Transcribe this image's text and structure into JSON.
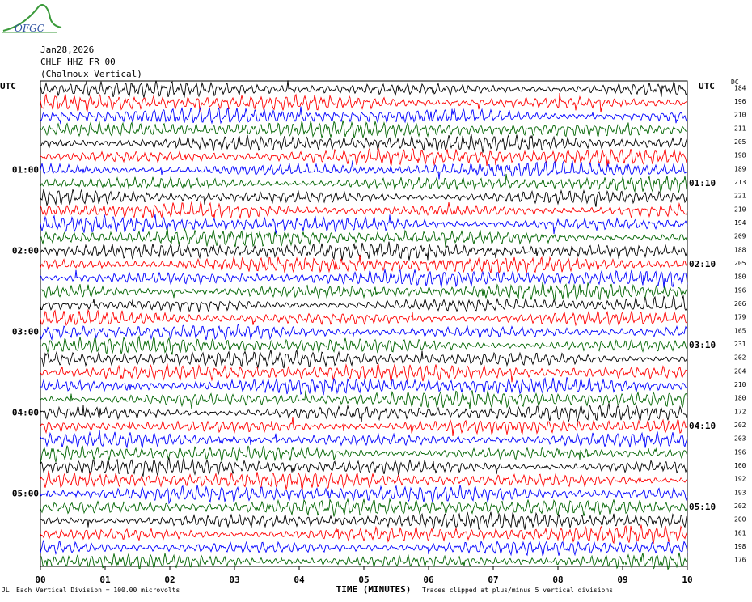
{
  "header": {
    "logo_text": "OFGC",
    "date": "Jan28,2026",
    "station": "CHLF HHZ FR 00",
    "location": "(Chalmoux Vertical)"
  },
  "utc_left": "UTC",
  "utc_right": "UTC",
  "dc_label": "DC",
  "footer": {
    "scale_note": "Each Vertical Division =  100.00 microvolts",
    "clip_note": "Traces clipped at plus/minus 5 vertical divisions",
    "corner_mark": "JL"
  },
  "chart_data": {
    "type": "line",
    "subtype": "helicorder",
    "xlabel": "TIME (MINUTES)",
    "x_ticks": [
      "00",
      "01",
      "02",
      "03",
      "04",
      "05",
      "06",
      "07",
      "08",
      "09",
      "10"
    ],
    "xlim": [
      0,
      10
    ],
    "trace_colors": [
      "#000000",
      "#ff0000",
      "#0000ff",
      "#006400"
    ],
    "left_time_labels": [
      {
        "row": 6,
        "label": "01:00"
      },
      {
        "row": 12,
        "label": "02:00"
      },
      {
        "row": 18,
        "label": "03:00"
      },
      {
        "row": 24,
        "label": "04:00"
      },
      {
        "row": 30,
        "label": "05:00"
      }
    ],
    "right_time_labels": [
      {
        "row": 7,
        "label": "01:10"
      },
      {
        "row": 13,
        "label": "02:10"
      },
      {
        "row": 19,
        "label": "03:10"
      },
      {
        "row": 25,
        "label": "04:10"
      },
      {
        "row": 31,
        "label": "05:10"
      }
    ],
    "dc_offsets": [
      184,
      196,
      210,
      211,
      205,
      198,
      189,
      213,
      221,
      210,
      194,
      209,
      188,
      205,
      180,
      196,
      206,
      179,
      165,
      231,
      202,
      204,
      210,
      180,
      172,
      202,
      203,
      196,
      160,
      192,
      193,
      202,
      200,
      161,
      198,
      176
    ],
    "trace_count": 36
  }
}
